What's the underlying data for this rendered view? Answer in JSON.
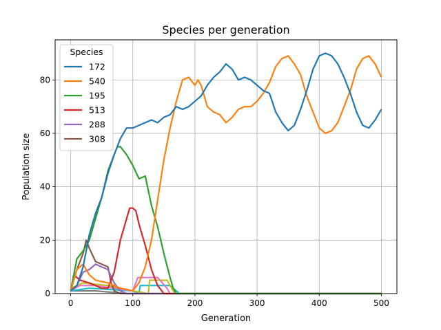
{
  "chart_data": {
    "type": "line",
    "title": "Species per generation",
    "xlabel": "Generation",
    "ylabel": "Population size",
    "xlim": [
      -25,
      525
    ],
    "ylim": [
      0,
      95
    ],
    "xticks": [
      0,
      100,
      200,
      300,
      400,
      500
    ],
    "yticks": [
      0,
      20,
      40,
      60,
      80
    ],
    "xtick_labels": [
      "0",
      "100",
      "200",
      "300",
      "400",
      "500"
    ],
    "ytick_labels": [
      "0",
      "20",
      "40",
      "60",
      "80"
    ],
    "grid": true,
    "legend": {
      "title": "Species",
      "placement": "top-left",
      "entries": [
        "172",
        "540",
        "195",
        "513",
        "288",
        "308"
      ]
    },
    "series": [
      {
        "name": "172",
        "color": "#1f77b4",
        "points": [
          [
            0,
            1
          ],
          [
            10,
            3
          ],
          [
            20,
            10
          ],
          [
            30,
            22
          ],
          [
            40,
            30
          ],
          [
            50,
            36
          ],
          [
            60,
            45
          ],
          [
            70,
            52
          ],
          [
            80,
            58
          ],
          [
            90,
            62
          ],
          [
            100,
            62
          ],
          [
            110,
            63
          ],
          [
            120,
            64
          ],
          [
            130,
            65
          ],
          [
            140,
            64
          ],
          [
            150,
            66
          ],
          [
            160,
            67
          ],
          [
            170,
            70
          ],
          [
            180,
            69
          ],
          [
            190,
            70
          ],
          [
            195,
            71
          ],
          [
            200,
            72
          ],
          [
            210,
            74
          ],
          [
            220,
            78
          ],
          [
            230,
            81
          ],
          [
            240,
            83
          ],
          [
            250,
            86
          ],
          [
            260,
            84
          ],
          [
            270,
            80
          ],
          [
            280,
            81
          ],
          [
            290,
            80
          ],
          [
            300,
            78
          ],
          [
            310,
            76
          ],
          [
            320,
            75
          ],
          [
            330,
            68
          ],
          [
            340,
            64
          ],
          [
            350,
            61
          ],
          [
            360,
            63
          ],
          [
            370,
            69
          ],
          [
            380,
            76
          ],
          [
            390,
            84
          ],
          [
            400,
            89
          ],
          [
            410,
            90
          ],
          [
            420,
            89
          ],
          [
            430,
            86
          ],
          [
            440,
            81
          ],
          [
            450,
            75
          ],
          [
            460,
            68
          ],
          [
            470,
            63
          ],
          [
            480,
            62
          ],
          [
            490,
            65
          ],
          [
            500,
            69
          ]
        ]
      },
      {
        "name": "540",
        "color": "#ff7f0e",
        "points": [
          [
            0,
            1
          ],
          [
            10,
            9
          ],
          [
            20,
            11
          ],
          [
            30,
            7
          ],
          [
            40,
            5
          ],
          [
            60,
            4
          ],
          [
            80,
            2
          ],
          [
            100,
            1
          ],
          [
            110,
            4
          ],
          [
            120,
            10
          ],
          [
            130,
            20
          ],
          [
            140,
            35
          ],
          [
            150,
            50
          ],
          [
            160,
            62
          ],
          [
            170,
            72
          ],
          [
            180,
            80
          ],
          [
            190,
            81
          ],
          [
            200,
            78
          ],
          [
            205,
            80
          ],
          [
            210,
            78
          ],
          [
            220,
            70
          ],
          [
            230,
            68
          ],
          [
            240,
            67
          ],
          [
            250,
            64
          ],
          [
            260,
            66
          ],
          [
            270,
            69
          ],
          [
            280,
            70
          ],
          [
            290,
            70
          ],
          [
            300,
            72
          ],
          [
            310,
            75
          ],
          [
            320,
            79
          ],
          [
            330,
            85
          ],
          [
            340,
            88
          ],
          [
            350,
            89
          ],
          [
            360,
            86
          ],
          [
            370,
            82
          ],
          [
            380,
            74
          ],
          [
            390,
            68
          ],
          [
            400,
            62
          ],
          [
            410,
            60
          ],
          [
            420,
            61
          ],
          [
            430,
            64
          ],
          [
            440,
            70
          ],
          [
            450,
            76
          ],
          [
            460,
            84
          ],
          [
            470,
            88
          ],
          [
            480,
            89
          ],
          [
            490,
            86
          ],
          [
            500,
            81
          ]
        ]
      },
      {
        "name": "195",
        "color": "#2ca02c",
        "points": [
          [
            0,
            1
          ],
          [
            10,
            13
          ],
          [
            20,
            16
          ],
          [
            30,
            20
          ],
          [
            40,
            28
          ],
          [
            50,
            36
          ],
          [
            60,
            46
          ],
          [
            70,
            52
          ],
          [
            75,
            55
          ],
          [
            80,
            55
          ],
          [
            90,
            52
          ],
          [
            100,
            48
          ],
          [
            110,
            43
          ],
          [
            120,
            44
          ],
          [
            130,
            33
          ],
          [
            140,
            25
          ],
          [
            150,
            15
          ],
          [
            160,
            6
          ],
          [
            165,
            2
          ],
          [
            170,
            0
          ],
          [
            500,
            0
          ]
        ]
      },
      {
        "name": "513",
        "color": "#d62728",
        "points": [
          [
            0,
            1
          ],
          [
            5,
            7
          ],
          [
            15,
            5
          ],
          [
            30,
            4
          ],
          [
            50,
            2
          ],
          [
            60,
            2
          ],
          [
            70,
            8
          ],
          [
            80,
            20
          ],
          [
            90,
            28
          ],
          [
            95,
            32
          ],
          [
            100,
            32
          ],
          [
            105,
            31
          ],
          [
            110,
            26
          ],
          [
            120,
            18
          ],
          [
            130,
            9
          ],
          [
            140,
            3
          ],
          [
            150,
            0
          ],
          [
            500,
            0
          ]
        ]
      },
      {
        "name": "288",
        "color": "#9467bd",
        "points": [
          [
            0,
            1
          ],
          [
            10,
            3
          ],
          [
            20,
            8
          ],
          [
            30,
            9
          ],
          [
            40,
            11
          ],
          [
            50,
            10
          ],
          [
            60,
            9
          ],
          [
            70,
            4
          ],
          [
            80,
            1
          ],
          [
            90,
            0
          ],
          [
            500,
            0
          ]
        ]
      },
      {
        "name": "308",
        "color": "#8c564b",
        "points": [
          [
            0,
            1
          ],
          [
            10,
            9
          ],
          [
            20,
            15
          ],
          [
            25,
            20
          ],
          [
            30,
            17
          ],
          [
            40,
            12
          ],
          [
            50,
            11
          ],
          [
            60,
            10
          ],
          [
            65,
            4
          ],
          [
            70,
            1
          ],
          [
            80,
            0
          ],
          [
            500,
            0
          ]
        ]
      },
      {
        "name": "",
        "color": "#e377c2",
        "points": [
          [
            0,
            1
          ],
          [
            15,
            3
          ],
          [
            40,
            3
          ],
          [
            70,
            2
          ],
          [
            100,
            1
          ],
          [
            108,
            6
          ],
          [
            140,
            6
          ],
          [
            155,
            2
          ],
          [
            160,
            0
          ],
          [
            500,
            0
          ]
        ]
      },
      {
        "name": "",
        "color": "#bcbd22",
        "points": [
          [
            0,
            2
          ],
          [
            20,
            4
          ],
          [
            60,
            3
          ],
          [
            100,
            1
          ],
          [
            125,
            0
          ],
          [
            127,
            5
          ],
          [
            155,
            5
          ],
          [
            165,
            1
          ],
          [
            170,
            0
          ],
          [
            500,
            0
          ]
        ]
      },
      {
        "name": "",
        "color": "#17becf",
        "points": [
          [
            0,
            1
          ],
          [
            30,
            2
          ],
          [
            100,
            1
          ],
          [
            110,
            0
          ],
          [
            112,
            3
          ],
          [
            160,
            3
          ],
          [
            170,
            1
          ],
          [
            175,
            0
          ],
          [
            500,
            0
          ]
        ]
      },
      {
        "name": "",
        "color": "#7f7f7f",
        "points": [
          [
            0,
            1
          ],
          [
            40,
            1
          ],
          [
            90,
            0
          ],
          [
            500,
            0
          ]
        ]
      }
    ]
  }
}
